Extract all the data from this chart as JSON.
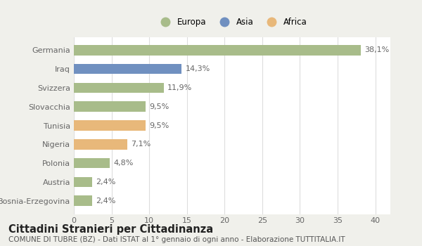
{
  "categories": [
    "Germania",
    "Iraq",
    "Svizzera",
    "Slovacchia",
    "Tunisia",
    "Nigeria",
    "Polonia",
    "Austria",
    "Bosnia-Erzegovina"
  ],
  "values": [
    38.1,
    14.3,
    11.9,
    9.5,
    9.5,
    7.1,
    4.8,
    2.4,
    2.4
  ],
  "labels": [
    "38,1%",
    "14,3%",
    "11,9%",
    "9,5%",
    "9,5%",
    "7,1%",
    "4,8%",
    "2,4%",
    "2,4%"
  ],
  "colors": [
    "#a8bc8a",
    "#7090c0",
    "#a8bc8a",
    "#a8bc8a",
    "#e8b87a",
    "#e8b87a",
    "#a8bc8a",
    "#a8bc8a",
    "#a8bc8a"
  ],
  "legend_labels": [
    "Europa",
    "Asia",
    "Africa"
  ],
  "legend_colors": [
    "#a8bc8a",
    "#7090c0",
    "#e8b87a"
  ],
  "xlim": [
    0,
    42
  ],
  "xticks": [
    0,
    5,
    10,
    15,
    20,
    25,
    30,
    35,
    40
  ],
  "title": "Cittadini Stranieri per Cittadinanza",
  "subtitle": "COMUNE DI TUBRE (BZ) - Dati ISTAT al 1° gennaio di ogni anno - Elaborazione TUTTITALIA.IT",
  "bg_color": "#f0f0eb",
  "plot_bg_color": "#ffffff",
  "grid_color": "#dddddd",
  "bar_height": 0.55,
  "label_fontsize": 8,
  "tick_fontsize": 8,
  "title_fontsize": 10.5,
  "subtitle_fontsize": 7.5
}
